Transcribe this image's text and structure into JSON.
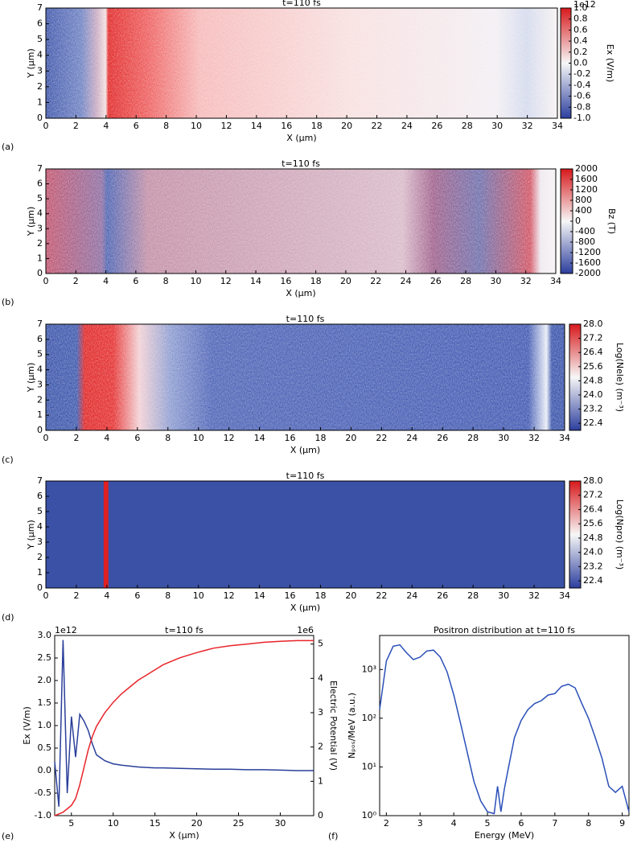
{
  "chart_data": [
    {
      "type": "heatmap",
      "title": "t=110 fs",
      "panel_label": "(a)",
      "xlabel": "X (μm)",
      "ylabel": "Y (μm)",
      "xlim": [
        0,
        34
      ],
      "xticks": [
        0,
        2,
        4,
        6,
        8,
        10,
        12,
        14,
        16,
        18,
        20,
        22,
        24,
        26,
        28,
        30,
        32,
        34
      ],
      "ylim": [
        0,
        7
      ],
      "yticks": [
        0,
        1,
        2,
        3,
        4,
        5,
        6,
        7
      ],
      "colorbar": {
        "label": "Ex (V/m)",
        "offset_text": "1e12",
        "lim": [
          -1,
          1
        ],
        "ticks": [
          {
            "value": 1,
            "label": "1.0"
          },
          0.8,
          0.6,
          0.4,
          0.2,
          {
            "value": 0,
            "label": "0.0"
          },
          -0.2,
          -0.4,
          -0.6,
          -0.8,
          {
            "value": -1,
            "label": "-1.0"
          }
        ]
      }
    },
    {
      "type": "heatmap",
      "title": "t=110 fs",
      "panel_label": "(b)",
      "xlabel": "X (μm)",
      "ylabel": "Y (μm)",
      "xlim": [
        0,
        34
      ],
      "xticks": [
        0,
        2,
        4,
        6,
        8,
        10,
        12,
        14,
        16,
        18,
        20,
        22,
        24,
        26,
        28,
        30,
        32,
        34
      ],
      "ylim": [
        0,
        7
      ],
      "yticks": [
        0,
        1,
        2,
        3,
        4,
        5,
        6,
        7
      ],
      "colorbar": {
        "label": "Bz (T)",
        "lim": [
          -2000,
          2000
        ],
        "ticks": [
          2000,
          1600,
          1200,
          800,
          400,
          0,
          -400,
          -800,
          -1200,
          -1600,
          -2000
        ]
      }
    },
    {
      "type": "heatmap",
      "title": "t=110 fs",
      "panel_label": "(c)",
      "xlabel": "X (μm)",
      "ylabel": "Y (μm)",
      "xlim": [
        0,
        34
      ],
      "xticks": [
        0,
        2,
        4,
        6,
        8,
        10,
        12,
        14,
        16,
        18,
        20,
        22,
        24,
        26,
        28,
        30,
        32,
        34
      ],
      "ylim": [
        0,
        7
      ],
      "yticks": [
        0,
        1,
        2,
        3,
        4,
        5,
        6,
        7
      ],
      "colorbar": {
        "label": "Log(Nele) (m⁻³)",
        "lim": [
          22,
          28
        ],
        "ticks": [
          {
            "value": 28,
            "label": "28.0"
          },
          27.2,
          26.4,
          25.6,
          24.8,
          {
            "value": 24,
            "label": "24.0"
          },
          23.2,
          22.4
        ]
      }
    },
    {
      "type": "heatmap",
      "title": "t=110 fs",
      "panel_label": "(d)",
      "xlabel": "X (μm)",
      "ylabel": "Y (μm)",
      "xlim": [
        0,
        34
      ],
      "xticks": [
        0,
        2,
        4,
        6,
        8,
        10,
        12,
        14,
        16,
        18,
        20,
        22,
        24,
        26,
        28,
        30,
        32,
        34
      ],
      "ylim": [
        0,
        7
      ],
      "yticks": [
        0,
        1,
        2,
        3,
        4,
        5,
        6,
        7
      ],
      "colorbar": {
        "label": "Log(Npro) (m⁻³)",
        "lim": [
          22,
          28
        ],
        "ticks": [
          {
            "value": 28,
            "label": "28.0"
          },
          27.2,
          26.4,
          25.6,
          24.8,
          {
            "value": 24,
            "label": "24.0"
          },
          23.2,
          22.4
        ]
      }
    },
    {
      "type": "line",
      "title": "t=110 fs",
      "panel_label": "(e)",
      "xlabel": "X (μm)",
      "ylabel": "Ex (V/m)",
      "y2label": "Electric Potential (V)",
      "offset_text": "1e12",
      "y2offset_text": "1e6",
      "xlim": [
        3,
        34
      ],
      "xticks": [
        5,
        10,
        15,
        20,
        25,
        30
      ],
      "ylim": [
        -1,
        3
      ],
      "yticks": [
        {
          "value": -1,
          "label": "-1.0"
        },
        -0.5,
        {
          "value": 0,
          "label": "0.0"
        },
        0.5,
        {
          "value": 1,
          "label": "1.0"
        },
        1.5,
        {
          "value": 2,
          "label": "2.0"
        },
        2.5,
        {
          "value": 3,
          "label": "3.0"
        }
      ],
      "y2lim": [
        0,
        5.25
      ],
      "y2ticks": [
        0,
        1,
        2,
        3,
        4,
        5
      ],
      "x": [
        3,
        3.5,
        4,
        4.5,
        5,
        5.5,
        6,
        6.5,
        7,
        7.5,
        8,
        9,
        10,
        11,
        12,
        13,
        14,
        15,
        16,
        18,
        20,
        22,
        24,
        26,
        28,
        30,
        32,
        34
      ],
      "series": [
        {
          "name": "Ex",
          "color": "#2a3f9a",
          "values": [
            0.2,
            -0.8,
            2.9,
            -0.5,
            1.2,
            0.3,
            1.25,
            1.1,
            0.9,
            0.6,
            0.35,
            0.22,
            0.15,
            0.12,
            0.1,
            0.08,
            0.07,
            0.06,
            0.06,
            0.05,
            0.04,
            0.03,
            0.03,
            0.02,
            0.02,
            0.01,
            0,
            0
          ]
        },
        {
          "name": "Electric Potential",
          "color": "#e8242a",
          "axis": "y2",
          "values": [
            0,
            0.05,
            0.1,
            0.2,
            0.3,
            0.5,
            0.9,
            1.4,
            1.9,
            2.3,
            2.6,
            3,
            3.3,
            3.55,
            3.75,
            3.95,
            4.1,
            4.25,
            4.4,
            4.6,
            4.75,
            4.88,
            4.95,
            5,
            5.05,
            5.08,
            5.1,
            5.1
          ]
        }
      ]
    },
    {
      "type": "line",
      "title": "Positron distribution at t=110 fs",
      "panel_label": "(f)",
      "xlabel": "Energy (MeV)",
      "ylabel": "Nₚₒₛ/MeV (a.u.)",
      "log_y": true,
      "xlim": [
        1.8,
        9.2
      ],
      "xticks": [
        2,
        3,
        4,
        5,
        6,
        7,
        8,
        9
      ],
      "ylim": [
        1,
        5000
      ],
      "yticks": [
        {
          "value": 1,
          "label": "10⁰"
        },
        {
          "value": 10,
          "label": "10¹"
        },
        {
          "value": 100,
          "label": "10²"
        },
        {
          "value": 1000,
          "label": "10³"
        }
      ],
      "x": [
        1.8,
        2,
        2.2,
        2.4,
        2.6,
        2.8,
        3,
        3.2,
        3.4,
        3.6,
        3.8,
        4,
        4.2,
        4.4,
        4.6,
        4.8,
        5,
        5.2,
        5.3,
        5.4,
        5.5,
        5.6,
        5.8,
        6,
        6.2,
        6.4,
        6.6,
        6.8,
        7,
        7.2,
        7.4,
        7.6,
        7.8,
        8,
        8.2,
        8.4,
        8.6,
        8.8,
        9,
        9.2
      ],
      "series": [
        {
          "name": "Positrons",
          "color": "#2a4fb8",
          "values": [
            150,
            1500,
            3000,
            3200,
            2200,
            1600,
            1800,
            2400,
            2500,
            1800,
            900,
            300,
            80,
            20,
            5,
            2,
            1.2,
            1.1,
            4,
            1.2,
            3.5,
            8,
            40,
            90,
            150,
            200,
            230,
            300,
            320,
            450,
            500,
            420,
            200,
            100,
            40,
            15,
            4,
            3,
            4,
            1.2
          ]
        }
      ]
    }
  ]
}
